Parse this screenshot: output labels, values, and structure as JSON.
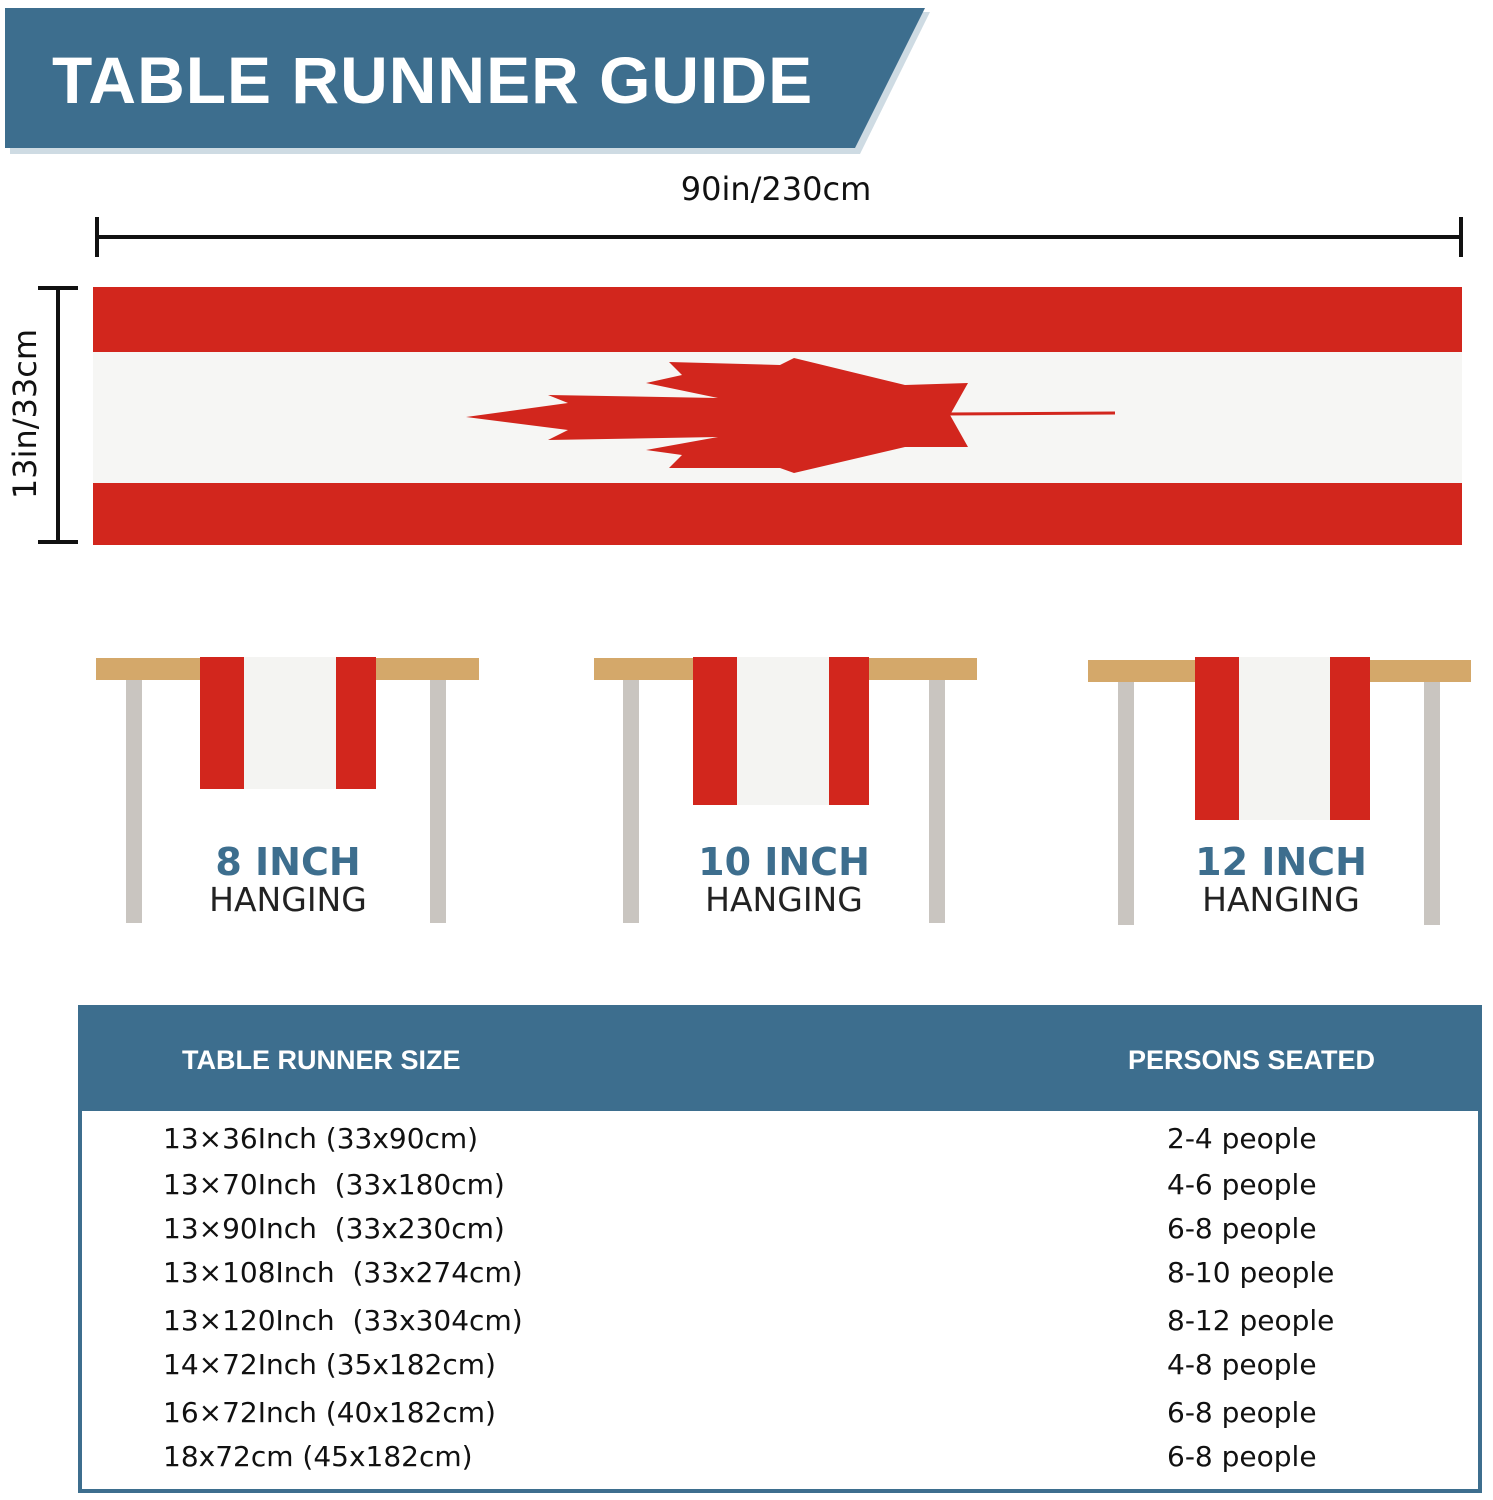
{
  "title": "TABLE RUNNER GUIDE",
  "dimensions": {
    "width_label": "90in/230cm",
    "height_label": "13in/33cm"
  },
  "colors": {
    "brand_blue": "#3d6e8e",
    "flag_red": "#d2261d",
    "table_top": "#d4a86a",
    "table_leg": "#c9c5c0"
  },
  "hanging": [
    {
      "size": "8 INCH",
      "label": "HANGING"
    },
    {
      "size": "10 INCH",
      "label": "HANGING"
    },
    {
      "size": "12 INCH",
      "label": "HANGING"
    }
  ],
  "table": {
    "headers": [
      "TABLE RUNNER SIZE",
      "PERSONS SEATED"
    ],
    "rows": [
      {
        "size": "13×36Inch (33x90cm)",
        "persons": "2-4 people"
      },
      {
        "size": "13×70Inch  (33x180cm)",
        "persons": "4-6 people"
      },
      {
        "size": "13×90Inch  (33x230cm)",
        "persons": "6-8 people"
      },
      {
        "size": "13×108Inch  (33x274cm)",
        "persons": "8-10 people"
      },
      {
        "size": "13×120Inch  (33x304cm)",
        "persons": "8-12 people"
      },
      {
        "size": "14×72Inch (35x182cm)",
        "persons": "4-8 people"
      },
      {
        "size": "16×72Inch (40x182cm)",
        "persons": "6-8 people"
      },
      {
        "size": "18x72cm (45x182cm)",
        "persons": "6-8 people"
      }
    ]
  }
}
